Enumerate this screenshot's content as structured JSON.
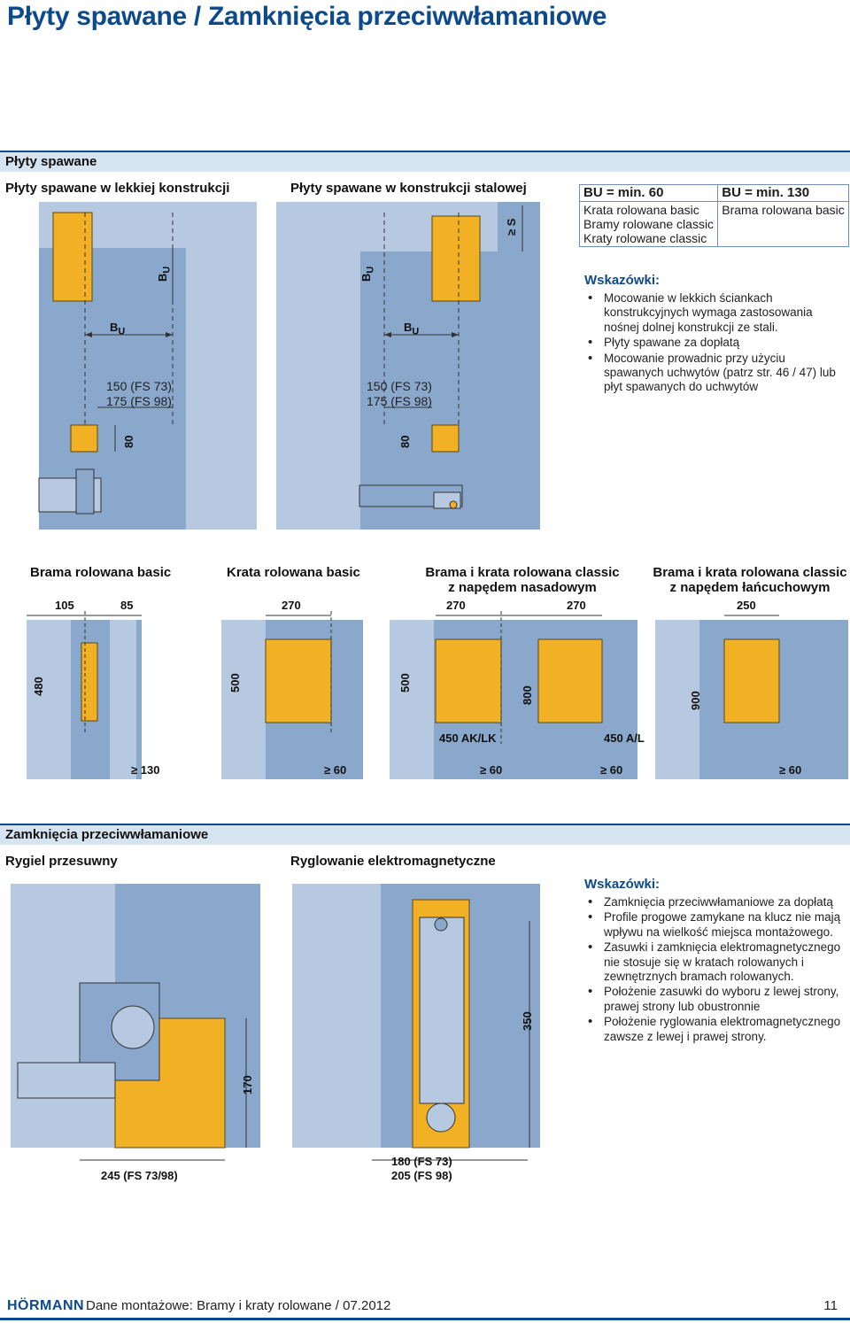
{
  "page": {
    "title": "Płyty spawane / Zamknięcia przeciwwłamaniowe",
    "footer": {
      "brand": "HÖRMANN",
      "text": "Dane montażowe: Bramy i kraty rolowane / 07.2012",
      "page_number": "11"
    }
  },
  "colors": {
    "accent": "#0d4a8c",
    "band": "#d6e3f1",
    "wall": "#8aa7cc",
    "wall_light": "#b7c9e0",
    "plate": "#f2b024"
  },
  "section1": {
    "heading": "Płyty spawane",
    "left_title": "Płyty spawane w lekkiej konstrukcji",
    "mid_title": "Płyty spawane w konstrukcji stalowej",
    "dims": {
      "bu": "B",
      "bu_sub": "U",
      "plate_left": [
        "150 (FS 73)",
        "175 (FS 98)"
      ],
      "plate_mid": [
        "150 (FS 73)",
        "175 (FS 98)"
      ],
      "d80": "80",
      "ges": "≥ S"
    },
    "bu_table": {
      "col1_head": "BU = min. 60",
      "col2_head": "BU = min. 130",
      "col1_items": [
        "Krata rolowana basic",
        "Bramy rolowane classic",
        "Kraty rolowane classic"
      ],
      "col2_items": [
        "Brama rolowana basic"
      ]
    },
    "notes": {
      "heading": "Wskazówki:",
      "items": [
        "Mocowanie w lekkich ściankach konstrukcyjnych wymaga zastosowania nośnej dolnej konstrukcji ze stali.",
        "Płyty spawane za dopłatą",
        "Mocowanie prowadnic przy użyciu spawanych uchwytów (patrz str. 46 / 47) lub płyt spawanych do uchwytów"
      ]
    }
  },
  "section2": {
    "groups": [
      {
        "title": [
          "Brama rolowana basic"
        ],
        "top_dims": [
          "105",
          "85"
        ],
        "height": "480",
        "min": "≥ 130"
      },
      {
        "title": [
          "Krata rolowana basic"
        ],
        "top_dims": [
          "270"
        ],
        "height": "500",
        "min": "≥ 60"
      },
      {
        "title": [
          "Brama i krata rolowana classic",
          "z napędem nasadowym"
        ],
        "top_dims": [
          "270",
          "270"
        ],
        "heights": [
          "500",
          "800"
        ],
        "bottom": "450 AK/LK",
        "min": "≥ 60",
        "min2": "≥ 60"
      },
      {
        "title": [
          "Brama i krata rolowana classic",
          "z napędem łańcuchowym"
        ],
        "top_dims": [
          "250"
        ],
        "height": "900",
        "bottom": "450 A/L",
        "min": "≥ 60"
      }
    ]
  },
  "section3": {
    "heading": "Zamknięcia przeciwwłamaniowe",
    "left_title": "Rygiel przesuwny",
    "mid_title": "Ryglowanie elektromagnetyczne",
    "dims": {
      "d170": "170",
      "d245": "245 (FS 73/98)",
      "d350": "350",
      "d180": [
        "180 (FS 73)",
        "205 (FS 98)"
      ]
    },
    "notes": {
      "heading": "Wskazówki:",
      "items": [
        "Zamknięcia przeciwwłamaniowe za dopłatą",
        "Profile progowe zamykane na klucz nie mają wpływu na wielkość miejsca montażowego.",
        "Zasuwki i zamknięcia elektromagnetycznego nie stosuje się w kratach rolowanych i zewnętrznych bramach rolowanych.",
        "Położenie zasuwki do wyboru z lewej strony, prawej strony lub obustronnie",
        "Położenie ryglowania elektromagnetycznego zawsze z lewej i prawej strony."
      ]
    }
  }
}
